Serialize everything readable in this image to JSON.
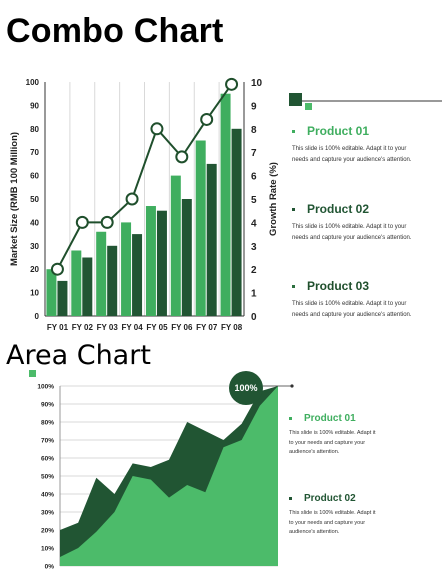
{
  "colors": {
    "light_green": "#3fae5f",
    "dark_green": "#215533",
    "mid_green": "#4cbb6a",
    "line": "#1f4f2c",
    "grid": "#d9d9d9",
    "product_01": "#3fae5f",
    "product_02": "#215533",
    "product_03": "#2c6f3f"
  },
  "combo": {
    "title": "Combo Chart",
    "legend": [
      {
        "name": "Product 01",
        "desc_lines": [
          "This slide is 100% editable. Adapt it to your",
          "needs and capture your audience's attention."
        ]
      },
      {
        "name": "Product 02",
        "desc_lines": [
          "This slide is 100% editable. Adapt it to your",
          "needs and capture your audience's attention."
        ]
      },
      {
        "name": "Product 03",
        "desc_lines": [
          "This slide is 100% editable. Adapt it to your",
          "needs and capture your audience's attention."
        ]
      }
    ]
  },
  "area": {
    "title": "Area Chart",
    "legend": [
      {
        "name": "Product 01",
        "desc_lines": [
          "This slide is 100% editable. Adapt it",
          "to your needs and capture your",
          "audience's attention."
        ]
      },
      {
        "name": "Product 02",
        "desc_lines": [
          "This slide is 100% editable. Adapt it",
          "to your needs and capture your",
          "audience's attention."
        ]
      }
    ]
  },
  "chart_data": [
    {
      "type": "bar",
      "categories": [
        "FY 01",
        "FY 02",
        "FY 03",
        "FY 04",
        "FY 05",
        "FY 06",
        "FY 07",
        "FY 08"
      ],
      "series": [
        {
          "values": [
            20,
            28,
            36,
            40,
            47,
            60,
            75,
            95
          ]
        },
        {
          "values": [
            15,
            25,
            30,
            35,
            45,
            50,
            65,
            80
          ]
        }
      ],
      "line_series": {
        "axis": "right",
        "values": [
          2,
          4,
          4,
          5,
          8,
          6.8,
          8.4,
          9.9
        ]
      },
      "ylabel": "Market Size (RMB 100 Million)",
      "ylabel_right": "Growth Rate (%)",
      "ylim": [
        0,
        100
      ],
      "ylim_right": [
        0,
        10
      ],
      "yticks": [
        "0",
        "10",
        "20",
        "30",
        "40",
        "50",
        "60",
        "70",
        "80",
        "90",
        "100"
      ],
      "yticks_right": [
        "0",
        "1",
        "2",
        "3",
        "4",
        "5",
        "6",
        "7",
        "8",
        "9",
        "10"
      ],
      "grid": true
    },
    {
      "type": "area",
      "x": [
        0,
        1,
        2,
        3,
        4,
        5,
        6,
        7,
        8,
        9,
        10,
        11,
        12
      ],
      "series": [
        {
          "name": "Product 02",
          "values": [
            20,
            24,
            49,
            40,
            57,
            55,
            59,
            80,
            75,
            70,
            79,
            97,
            100
          ]
        },
        {
          "name": "Product 01",
          "values": [
            5,
            10,
            19,
            30,
            50,
            48,
            38,
            45,
            41,
            66,
            70,
            89,
            100
          ]
        }
      ],
      "ylim": [
        0,
        100
      ],
      "yticks": [
        "0%",
        "10%",
        "20%",
        "30%",
        "40%",
        "50%",
        "60%",
        "70%",
        "80%",
        "90%",
        "100%"
      ],
      "callout": "100%",
      "grid": true
    }
  ]
}
